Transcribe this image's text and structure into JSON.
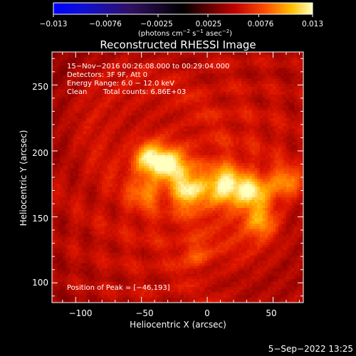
{
  "chart_data": {
    "type": "heatmap",
    "title": "Reconstructed RHESSI Image",
    "xlabel": "Heliocentric X (arcsec)",
    "ylabel": "Heliocentric Y (arcsec)",
    "xlim": [
      -118,
      73
    ],
    "ylim": [
      85,
      275
    ],
    "xticks": [
      -100,
      -50,
      0,
      50
    ],
    "xtick_labels": [
      "−100",
      "−50",
      "0",
      "50"
    ],
    "yticks": [
      100,
      150,
      200,
      250
    ],
    "ytick_labels": [
      "100",
      "150",
      "200",
      "250"
    ],
    "colorbar": {
      "range": [
        -0.013,
        0.013
      ],
      "ticks": [
        -0.013,
        -0.0076,
        -0.0025,
        0.0025,
        0.0076,
        0.013
      ],
      "tick_labels": [
        "−0.013",
        "−0.0076",
        "−0.0025",
        "0.0025",
        "0.0076",
        "0.013"
      ],
      "units_main": "(photons cm",
      "units_sup1": "−2",
      "units_mid": " s",
      "units_sup2": "−1",
      "units_end": " asec",
      "units_sup3": "−2",
      "units_close": ")"
    },
    "annotations": {
      "time_range": "15−Nov−2016 00:26:08.000 to 00:29:04.000",
      "detectors": "Detectors: 3F 9F, Att 0",
      "energy": "Energy Range: 6.0 − 12.0 keV",
      "method": "Clean",
      "total_counts": "Total counts: 6.86E+03",
      "peak": "Position of Peak = [−46,193]"
    },
    "peak_position": [
      -46,
      193
    ],
    "sources": [
      {
        "x": -45,
        "y": 193,
        "amp": 1.0,
        "sigma": 9
      },
      {
        "x": -28,
        "y": 188,
        "amp": 0.85,
        "sigma": 8
      },
      {
        "x": -15,
        "y": 168,
        "amp": 0.85,
        "sigma": 9
      },
      {
        "x": 12,
        "y": 172,
        "amp": 0.95,
        "sigma": 11
      },
      {
        "x": 35,
        "y": 168,
        "amp": 0.8,
        "sigma": 9
      },
      {
        "x": 58,
        "y": 175,
        "amp": 0.7,
        "sigma": 8
      },
      {
        "x": -48,
        "y": 168,
        "amp": 0.55,
        "sigma": 8
      },
      {
        "x": 40,
        "y": 145,
        "amp": 0.6,
        "sigma": 8
      },
      {
        "x": -10,
        "y": 120,
        "amp": 0.45,
        "sigma": 7
      }
    ],
    "grid": false
  },
  "footer": {
    "date": "5−Sep−2022 13:25"
  }
}
